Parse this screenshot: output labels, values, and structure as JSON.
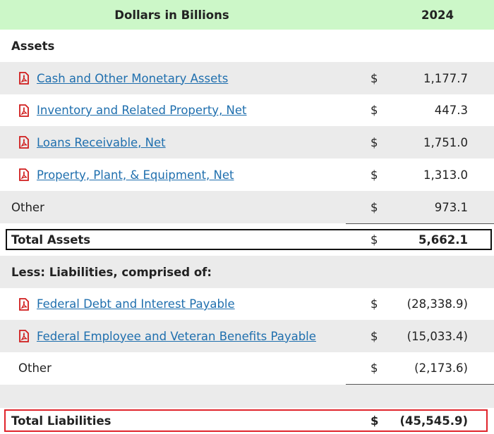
{
  "table": {
    "header": [
      "Dollars in Billions",
      "2024"
    ],
    "rows": [
      [
        "Assets"
      ],
      [
        "Cash and Other Monetary Assets",
        "$",
        "1,177.7"
      ],
      [
        "Inventory and Related Property, Net",
        "$",
        "447.3"
      ],
      [
        "Loans Receivable, Net",
        "$",
        "1,751.0"
      ],
      [
        "Property, Plant, & Equipment, Net",
        "$",
        "1,313.0"
      ],
      [
        "Other",
        "$",
        "973.1"
      ],
      [
        "Total Assets",
        "$",
        "5,662.1"
      ],
      [
        "Less: Liabilities, comprised of:"
      ],
      [
        "Federal Debt and Interest Payable",
        "$",
        "(28,338.9)"
      ],
      [
        "Federal Employee and Veteran Benefits Payable",
        "$",
        "(15,033.4)"
      ],
      [
        "Other",
        "$",
        "(2,173.6)"
      ],
      [
        "Total Liabilities",
        "$",
        "(45,545.9)"
      ]
    ]
  }
}
